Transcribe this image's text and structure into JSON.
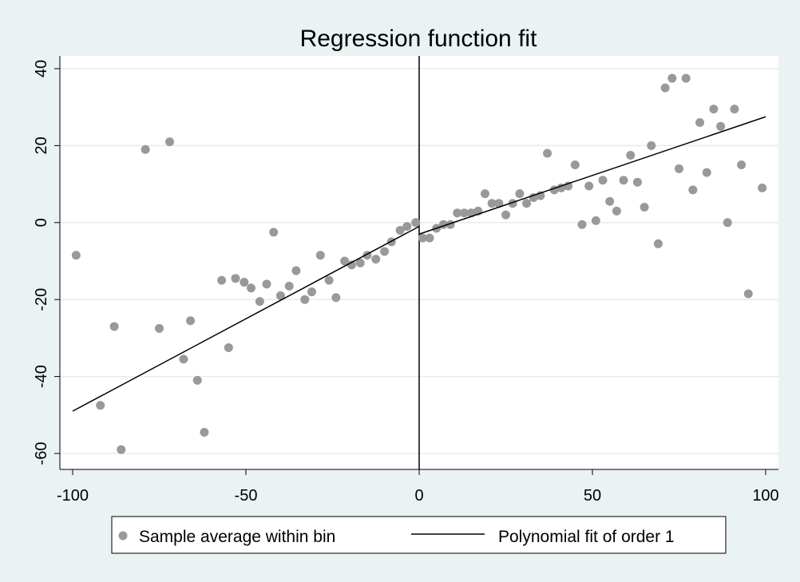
{
  "chart_data": {
    "type": "scatter",
    "title": "Regression function fit",
    "xlabel": "",
    "ylabel": "",
    "xlim": [
      -100,
      100
    ],
    "ylim": [
      -60,
      40
    ],
    "x_ticks": [
      -100,
      -50,
      0,
      50,
      100
    ],
    "y_ticks": [
      -60,
      -40,
      -20,
      0,
      20,
      40
    ],
    "grid": true,
    "cutoff": 0,
    "legend": {
      "placement": "bottom",
      "entries": [
        "Sample average within bin",
        "Polynomial fit of order 1"
      ]
    },
    "colors": {
      "points": "#999999",
      "line": "#000000",
      "background": "#eaf2f3",
      "plot": "#ffffff",
      "grid": "#e3edee"
    },
    "series": [
      {
        "name": "Sample average within bin",
        "kind": "scatter",
        "points": [
          [
            -99,
            -8.5
          ],
          [
            -92,
            -47.5
          ],
          [
            -88,
            -27
          ],
          [
            -86,
            -59
          ],
          [
            -79,
            19
          ],
          [
            -75,
            -27.5
          ],
          [
            -72,
            21
          ],
          [
            -68,
            -35.5
          ],
          [
            -66,
            -25.5
          ],
          [
            -64,
            -41
          ],
          [
            -62,
            -54.5
          ],
          [
            -57,
            -15
          ],
          [
            -55,
            -32.5
          ],
          [
            -53,
            -14.5
          ],
          [
            -50.5,
            -15.5
          ],
          [
            -48.5,
            -17
          ],
          [
            -46,
            -20.5
          ],
          [
            -44,
            -16
          ],
          [
            -42,
            -2.5
          ],
          [
            -40,
            -19
          ],
          [
            -37.5,
            -16.5
          ],
          [
            -35.5,
            -12.5
          ],
          [
            -33,
            -20
          ],
          [
            -31,
            -18
          ],
          [
            -28.5,
            -8.5
          ],
          [
            -26,
            -15
          ],
          [
            -24,
            -19.5
          ],
          [
            -21.5,
            -10
          ],
          [
            -19.5,
            -11
          ],
          [
            -17,
            -10.5
          ],
          [
            -15,
            -8.5
          ],
          [
            -12.5,
            -9.5
          ],
          [
            -10,
            -7.5
          ],
          [
            -8,
            -5
          ],
          [
            -5.5,
            -2
          ],
          [
            -3.5,
            -1
          ],
          [
            -1,
            0
          ],
          [
            1,
            -4
          ],
          [
            3,
            -4
          ],
          [
            5,
            -1.5
          ],
          [
            7,
            -0.5
          ],
          [
            9,
            -0.5
          ],
          [
            11,
            2.5
          ],
          [
            13,
            2.5
          ],
          [
            15,
            2.5
          ],
          [
            17,
            3
          ],
          [
            19,
            7.5
          ],
          [
            21,
            5
          ],
          [
            23,
            5
          ],
          [
            25,
            2
          ],
          [
            27,
            5
          ],
          [
            29,
            7.5
          ],
          [
            31,
            5
          ],
          [
            33,
            6.5
          ],
          [
            35,
            7
          ],
          [
            37,
            18
          ],
          [
            39,
            8.5
          ],
          [
            41,
            9
          ],
          [
            43,
            9.5
          ],
          [
            45,
            15
          ],
          [
            47,
            -0.5
          ],
          [
            49,
            9.5
          ],
          [
            51,
            0.5
          ],
          [
            53,
            11
          ],
          [
            55,
            5.5
          ],
          [
            57,
            3
          ],
          [
            59,
            11
          ],
          [
            61,
            17.5
          ],
          [
            63,
            10.5
          ],
          [
            65,
            4
          ],
          [
            67,
            20
          ],
          [
            69,
            -5.5
          ],
          [
            71,
            35
          ],
          [
            73,
            37.5
          ],
          [
            75,
            14
          ],
          [
            77,
            37.5
          ],
          [
            79,
            8.5
          ],
          [
            81,
            26
          ],
          [
            83,
            13
          ],
          [
            85,
            29.5
          ],
          [
            87,
            25
          ],
          [
            89,
            0
          ],
          [
            91,
            29.5
          ],
          [
            93,
            15
          ],
          [
            95,
            -18.5
          ],
          [
            99,
            9
          ]
        ]
      },
      {
        "name": "Polynomial fit of order 1",
        "kind": "line",
        "segments": [
          [
            [
              -100,
              -49
            ],
            [
              0,
              -1
            ]
          ],
          [
            [
              0,
              -3
            ],
            [
              100,
              27.5
            ]
          ]
        ]
      }
    ]
  }
}
